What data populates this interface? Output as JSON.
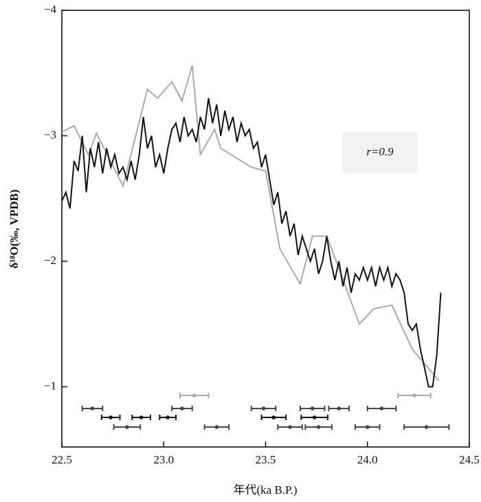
{
  "chart_data": {
    "type": "line",
    "xlabel": "年代(ka B.P.)",
    "ylabel": "δ¹⁸O(‰, VPDB)",
    "annotation": "r=0.9",
    "xlim": [
      22.5,
      24.5
    ],
    "xticks": [
      22.5,
      {
        "value": 23,
        "label": "23.0"
      },
      23.5,
      {
        "value": 24,
        "label": "24.0"
      },
      24.5
    ],
    "ylim": [
      -0.52,
      -4
    ],
    "yticks": [
      {
        "value": -4,
        "label": "−4"
      },
      {
        "value": -3,
        "label": "−3"
      },
      {
        "value": -2,
        "label": "−2"
      },
      {
        "value": -1,
        "label": "−1"
      }
    ],
    "series": [
      {
        "color": "#aaaaaa",
        "x": [
          22.5,
          22.56,
          22.63,
          22.67,
          22.8,
          22.92,
          22.97,
          23.04,
          23.09,
          23.14,
          23.18,
          23.25,
          23.28,
          23.43,
          23.5,
          23.57,
          23.67,
          23.73,
          23.8,
          23.87,
          23.96,
          24.03,
          24.12,
          24.22,
          24.35
        ],
        "values": [
          -3.03,
          -3.08,
          -2.85,
          -3.02,
          -2.6,
          -3.37,
          -3.3,
          -3.43,
          -3.28,
          -3.56,
          -2.85,
          -3.05,
          -2.9,
          -2.75,
          -2.72,
          -2.1,
          -1.82,
          -2.2,
          -2.2,
          -1.9,
          -1.5,
          -1.62,
          -1.65,
          -1.3,
          -1.05
        ]
      },
      {
        "color": "#111111",
        "x": [
          22.5,
          22.52,
          22.54,
          22.56,
          22.58,
          22.6,
          22.62,
          22.64,
          22.66,
          22.68,
          22.7,
          22.72,
          22.74,
          22.76,
          22.78,
          22.8,
          22.82,
          22.84,
          22.86,
          22.88,
          22.9,
          22.92,
          22.94,
          22.96,
          22.98,
          23.0,
          23.02,
          23.04,
          23.06,
          23.08,
          23.1,
          23.12,
          23.14,
          23.16,
          23.18,
          23.2,
          23.22,
          23.24,
          23.26,
          23.28,
          23.3,
          23.32,
          23.34,
          23.36,
          23.38,
          23.4,
          23.42,
          23.44,
          23.46,
          23.48,
          23.5,
          23.52,
          23.54,
          23.56,
          23.58,
          23.6,
          23.62,
          23.64,
          23.66,
          23.68,
          23.7,
          23.72,
          23.74,
          23.76,
          23.78,
          23.8,
          23.82,
          23.84,
          23.86,
          23.88,
          23.9,
          23.92,
          23.94,
          23.96,
          23.98,
          24.0,
          24.02,
          24.04,
          24.06,
          24.08,
          24.1,
          24.12,
          24.14,
          24.16,
          24.18,
          24.2,
          24.22,
          24.24,
          24.26,
          24.28,
          24.3,
          24.32,
          24.34,
          24.36
        ],
        "values": [
          -2.48,
          -2.55,
          -2.42,
          -2.8,
          -2.72,
          -3.0,
          -2.55,
          -2.9,
          -2.75,
          -2.95,
          -2.7,
          -2.9,
          -2.75,
          -2.85,
          -2.7,
          -2.75,
          -2.65,
          -2.8,
          -2.65,
          -2.85,
          -3.15,
          -2.9,
          -3.0,
          -2.75,
          -2.85,
          -2.7,
          -2.9,
          -3.05,
          -3.1,
          -2.95,
          -3.15,
          -3.0,
          -3.05,
          -2.95,
          -3.15,
          -3.05,
          -3.3,
          -3.1,
          -3.25,
          -3.0,
          -3.2,
          -3.05,
          -3.15,
          -2.95,
          -3.1,
          -3.0,
          -3.05,
          -2.9,
          -2.95,
          -2.75,
          -2.85,
          -2.65,
          -2.45,
          -2.55,
          -2.3,
          -2.4,
          -2.2,
          -2.3,
          -2.05,
          -2.2,
          -2.1,
          -2.0,
          -2.1,
          -1.9,
          -2.0,
          -2.2,
          -2.0,
          -1.85,
          -2.0,
          -1.8,
          -1.95,
          -1.75,
          -1.9,
          -1.85,
          -1.95,
          -1.85,
          -1.95,
          -1.8,
          -1.95,
          -1.85,
          -1.95,
          -1.8,
          -1.9,
          -1.85,
          -1.75,
          -1.5,
          -1.45,
          -1.5,
          -1.3,
          -1.15,
          -1.0,
          -1.0,
          -1.25,
          -1.75
        ]
      }
    ],
    "age_rows": [
      {
        "color": "#aaaaaa",
        "x": [
          23.15,
          24.23
        ],
        "xerr": [
          0.07,
          0.08
        ]
      },
      {
        "color": "#444444",
        "x": [
          22.65,
          23.09,
          23.49,
          23.73,
          23.86,
          24.07
        ],
        "xerr": [
          0.05,
          0.05,
          0.06,
          0.06,
          0.05,
          0.07
        ]
      },
      {
        "color": "#111111",
        "x": [
          22.74,
          22.89,
          23.02,
          23.54,
          23.74
        ],
        "xerr": [
          0.045,
          0.045,
          0.04,
          0.06,
          0.065
        ]
      },
      {
        "color": "#444444",
        "x": [
          22.82,
          23.26,
          23.62,
          23.76,
          24.0,
          24.29
        ],
        "xerr": [
          0.065,
          0.06,
          0.06,
          0.065,
          0.06,
          0.11
        ]
      }
    ]
  }
}
